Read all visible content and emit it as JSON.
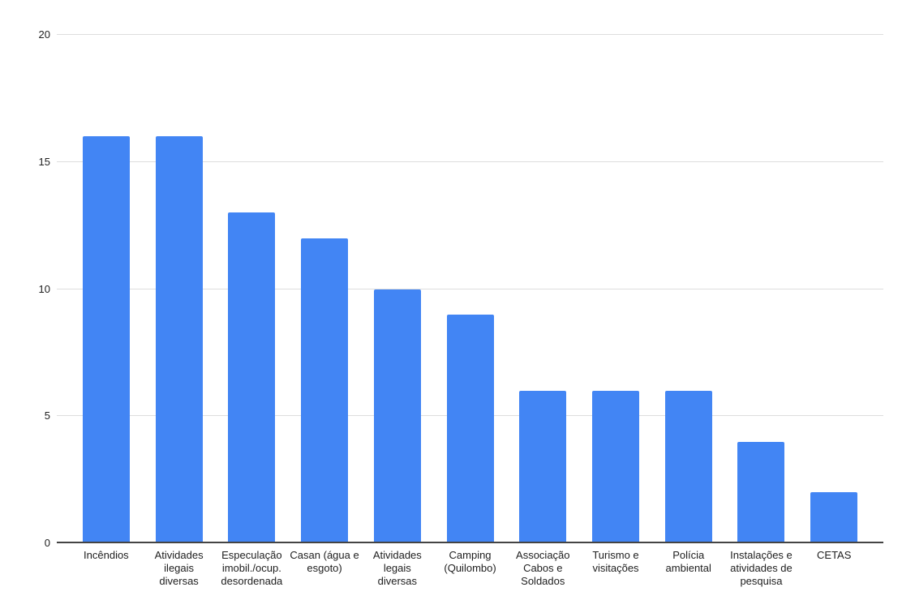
{
  "chart_data": {
    "type": "bar",
    "title": "",
    "xlabel": "",
    "ylabel": "",
    "categories": [
      "Incêndios",
      "Atividades ilegais diversas",
      "Especulação imobil./ocup. desordenada",
      "Casan (água e esgoto)",
      "Atividades legais diversas",
      "Camping (Quilombo)",
      "Associação Cabos e Soldados",
      "Turismo e visitações",
      "Polícia ambiental",
      "Instalações e atividades de pesquisa",
      "CETAS"
    ],
    "values": [
      16,
      16,
      13,
      12,
      10,
      9,
      6,
      6,
      6,
      4,
      2
    ],
    "ylim": [
      0,
      20
    ],
    "yticks": [
      0,
      5,
      10,
      15,
      20
    ],
    "grid": true,
    "legend": "none",
    "colors": {
      "bar": "#4285f4",
      "gridline": "#dddddd",
      "axis_line": "#444444",
      "tick_label": "#202020"
    }
  }
}
